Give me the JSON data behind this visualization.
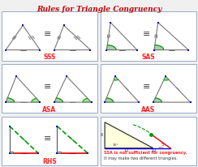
{
  "title": "Rules for Triangle Congruency",
  "title_color": "#cc0000",
  "title_fontsize": 6.5,
  "bg_color": "#f0f0f0",
  "cell_bg": "#ffffff",
  "cell_border_color": "#99aacc",
  "label_color": "#ff2222",
  "equiv_symbol": "≡",
  "ssa_text1": "SSA is not sufficient for congruency.",
  "ssa_text2": "It may make two different triangles.",
  "ssa_color": "#ff2222",
  "node_color": "#0000cc",
  "edge_color": "#777777",
  "green_color": "#009900",
  "red_color": "#dd0000",
  "blue_color": "#0000dd"
}
